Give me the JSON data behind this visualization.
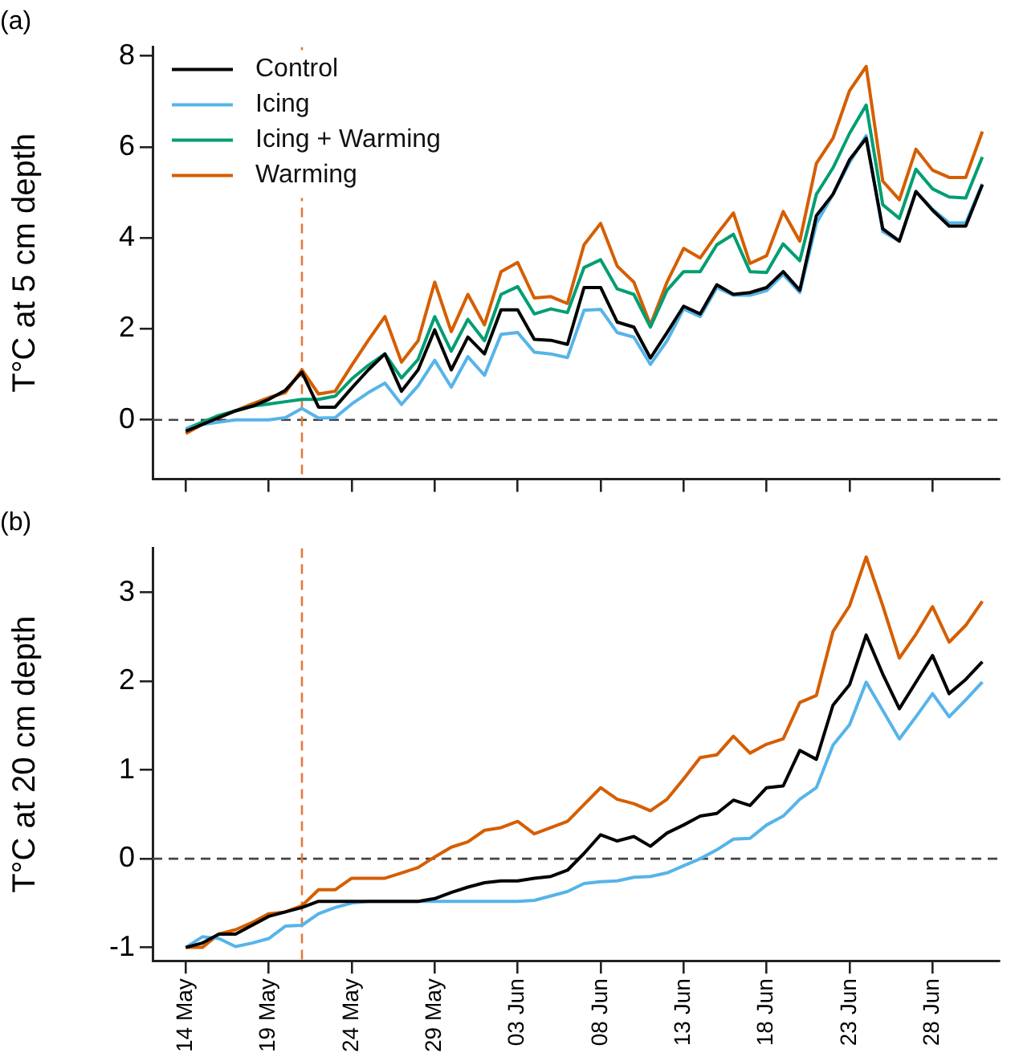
{
  "chart_data": [
    {
      "type": "line",
      "title": "(a)",
      "ylabel": "T°C at 5 cm depth",
      "legend": "top left",
      "tick_labels": "y",
      "x": [
        "--05-14",
        "--05-15",
        "--05-16",
        "--05-17",
        "--05-18",
        "--05-19",
        "--05-20",
        "--05-21",
        "--05-22",
        "--05-23",
        "--05-24",
        "--05-25",
        "--05-26",
        "--05-27",
        "--05-28",
        "--05-29",
        "--05-30",
        "--05-31",
        "--06-01",
        "--06-02",
        "--06-03",
        "--06-04",
        "--06-05",
        "--06-06",
        "--06-07",
        "--06-08",
        "--06-09",
        "--06-10",
        "--06-11",
        "--06-12",
        "--06-13",
        "--06-14",
        "--06-15",
        "--06-16",
        "--06-17",
        "--06-18",
        "--06-19",
        "--06-20",
        "--06-21",
        "--06-22",
        "--06-23",
        "--06-24",
        "--06-25",
        "--06-26",
        "--06-27",
        "--06-28",
        "--06-29",
        "--06-30",
        "--07-01"
      ],
      "series": [
        {
          "name": "Control",
          "color": "#000000",
          "values": [
            -0.25,
            -0.1,
            0.05,
            0.2,
            0.3,
            0.45,
            0.65,
            1.05,
            0.28,
            0.28,
            0.7,
            1.1,
            1.45,
            0.63,
            1.1,
            1.98,
            1.1,
            1.82,
            1.45,
            2.42,
            2.42,
            1.77,
            1.75,
            1.66,
            2.91,
            2.91,
            2.15,
            2.04,
            1.36,
            1.92,
            2.5,
            2.33,
            2.97,
            2.76,
            2.8,
            2.91,
            3.26,
            2.85,
            4.49,
            4.96,
            5.72,
            6.19,
            4.2,
            3.93,
            5.02,
            4.61,
            4.26,
            4.26,
            5.17
          ]
        },
        {
          "name": "Icing",
          "color": "#56b4e9",
          "values": [
            -0.2,
            -0.1,
            -0.05,
            0,
            0,
            0,
            0.05,
            0.25,
            0.04,
            0.05,
            0.35,
            0.6,
            0.81,
            0.34,
            0.75,
            1.31,
            0.72,
            1.39,
            0.98,
            1.88,
            1.92,
            1.49,
            1.45,
            1.37,
            2.41,
            2.43,
            1.92,
            1.82,
            1.22,
            1.74,
            2.44,
            2.27,
            2.91,
            2.74,
            2.74,
            2.84,
            3.2,
            2.8,
            4.32,
            4.96,
            5.66,
            6.25,
            4.14,
            3.93,
            5.02,
            4.63,
            4.33,
            4.33,
            5.19
          ]
        },
        {
          "name": "Icing + Warming",
          "color": "#009e73",
          "values": [
            -0.2,
            -0.05,
            0.1,
            0.2,
            0.3,
            0.35,
            0.4,
            0.45,
            0.45,
            0.52,
            0.9,
            1.2,
            1.45,
            0.92,
            1.33,
            2.27,
            1.51,
            2.21,
            1.74,
            2.76,
            2.93,
            2.33,
            2.44,
            2.36,
            3.35,
            3.52,
            2.88,
            2.76,
            2.04,
            2.85,
            3.26,
            3.26,
            3.85,
            4.08,
            3.26,
            3.24,
            3.87,
            3.5,
            4.96,
            5.54,
            6.3,
            6.92,
            4.73,
            4.43,
            5.51,
            5.08,
            4.9,
            4.88,
            5.78
          ]
        },
        {
          "name": "Warming",
          "color": "#d55e00",
          "values": [
            -0.3,
            -0.1,
            0.05,
            0.2,
            0.35,
            0.49,
            0.6,
            1.1,
            0.57,
            0.63,
            1.2,
            1.75,
            2.27,
            1.27,
            1.74,
            3.03,
            1.94,
            2.76,
            2.09,
            3.26,
            3.46,
            2.68,
            2.71,
            2.56,
            3.85,
            4.32,
            3.38,
            3.03,
            2.09,
            3.03,
            3.77,
            3.56,
            4.08,
            4.55,
            3.44,
            3.61,
            4.58,
            3.93,
            5.64,
            6.19,
            7.24,
            7.77,
            5.25,
            4.84,
            5.95,
            5.49,
            5.33,
            5.33,
            6.34
          ]
        }
      ],
      "xlim": [
        "--05-12",
        "--07-02"
      ],
      "xticks": [
        {
          "value": "--05-14",
          "label": null
        },
        {
          "value": "--05-19",
          "label": null
        },
        {
          "value": "--05-24",
          "label": null
        },
        {
          "value": "--05-29",
          "label": null
        },
        {
          "value": "--06-03",
          "label": null
        },
        {
          "value": "--06-08",
          "label": null
        },
        {
          "value": "--06-13",
          "label": null
        },
        {
          "value": "--06-18",
          "label": null
        },
        {
          "value": "--06-23",
          "label": null
        },
        {
          "value": "--06-28",
          "label": null
        }
      ],
      "ylim": [
        -1.3,
        8.2
      ],
      "yticks": [
        0,
        2,
        4,
        6,
        8
      ],
      "ref_lines": [
        {
          "axis": "y",
          "value": 0,
          "color": "#444444",
          "line_style": "dashed"
        },
        {
          "axis": "x",
          "value": "--05-21",
          "color": "#e07b39",
          "line_style": "dashed"
        }
      ]
    },
    {
      "type": "line",
      "title": "(b)",
      "ylabel": "T°C at 20 cm depth",
      "x": [
        "--05-14",
        "--05-15",
        "--05-16",
        "--05-17",
        "--05-18",
        "--05-19",
        "--05-20",
        "--05-21",
        "--05-22",
        "--05-23",
        "--05-24",
        "--05-25",
        "--05-26",
        "--05-27",
        "--05-28",
        "--05-29",
        "--05-30",
        "--05-31",
        "--06-01",
        "--06-02",
        "--06-03",
        "--06-04",
        "--06-05",
        "--06-06",
        "--06-07",
        "--06-08",
        "--06-09",
        "--06-10",
        "--06-11",
        "--06-12",
        "--06-13",
        "--06-14",
        "--06-15",
        "--06-16",
        "--06-17",
        "--06-18",
        "--06-19",
        "--06-20",
        "--06-21",
        "--06-22",
        "--06-23",
        "--06-24",
        "--06-25",
        "--06-26",
        "--06-27",
        "--06-28",
        "--06-29",
        "--06-30",
        "--07-01"
      ],
      "series": [
        {
          "color": "#000000",
          "values": [
            -1,
            -0.95,
            -0.85,
            -0.85,
            -0.75,
            -0.65,
            -0.6,
            -0.55,
            -0.48,
            -0.48,
            -0.48,
            -0.48,
            -0.48,
            -0.48,
            -0.48,
            -0.45,
            -0.38,
            -0.32,
            -0.27,
            -0.25,
            -0.25,
            -0.22,
            -0.2,
            -0.13,
            0.06,
            0.27,
            0.2,
            0.25,
            0.14,
            0.29,
            0.38,
            0.48,
            0.51,
            0.66,
            0.6,
            0.8,
            0.82,
            1.22,
            1.12,
            1.73,
            1.96,
            2.52,
            2.08,
            1.69,
            1.99,
            2.29,
            1.86,
            2.02,
            2.22
          ]
        },
        {
          "color": "#56b4e9",
          "values": [
            -1,
            -0.88,
            -0.9,
            -0.99,
            -0.95,
            -0.9,
            -0.76,
            -0.75,
            -0.62,
            -0.55,
            -0.5,
            -0.48,
            -0.48,
            -0.48,
            -0.48,
            -0.48,
            -0.48,
            -0.48,
            -0.48,
            -0.48,
            -0.48,
            -0.47,
            -0.42,
            -0.37,
            -0.28,
            -0.26,
            -0.25,
            -0.21,
            -0.2,
            -0.16,
            -0.08,
            0,
            0.1,
            0.22,
            0.23,
            0.38,
            0.48,
            0.67,
            0.8,
            1.28,
            1.51,
            1.99,
            1.67,
            1.35,
            1.6,
            1.86,
            1.6,
            1.79,
            1.99
          ]
        },
        {
          "color": "#d55e00",
          "values": [
            -1,
            -1,
            -0.85,
            -0.8,
            -0.72,
            -0.62,
            -0.6,
            -0.53,
            -0.35,
            -0.35,
            -0.22,
            -0.22,
            -0.22,
            -0.16,
            -0.1,
            0.02,
            0.13,
            0.19,
            0.32,
            0.35,
            0.42,
            0.28,
            0.35,
            0.42,
            0.61,
            0.8,
            0.67,
            0.62,
            0.54,
            0.67,
            0.9,
            1.14,
            1.17,
            1.38,
            1.19,
            1.29,
            1.35,
            1.76,
            1.84,
            2.56,
            2.85,
            3.4,
            2.85,
            2.26,
            2.53,
            2.84,
            2.44,
            2.63,
            2.9
          ]
        }
      ],
      "xlim": [
        "--05-12",
        "--07-02"
      ],
      "xticks": [
        {
          "value": "--05-14",
          "label": "14 May"
        },
        {
          "value": "--05-19",
          "label": "19 May"
        },
        {
          "value": "--05-24",
          "label": "24 May"
        },
        {
          "value": "--05-29",
          "label": "29 May"
        },
        {
          "value": "--06-03",
          "label": "03 Jun"
        },
        {
          "value": "--06-08",
          "label": "08 Jun"
        },
        {
          "value": "--06-13",
          "label": "13 Jun"
        },
        {
          "value": "--06-18",
          "label": "18 Jun"
        },
        {
          "value": "--06-23",
          "label": "23 Jun"
        },
        {
          "value": "--06-28",
          "label": "28 Jun"
        }
      ],
      "ylim": [
        -1.15,
        3.5
      ],
      "yticks": [
        -1,
        0,
        1,
        2,
        3
      ],
      "ref_lines": [
        {
          "axis": "y",
          "value": 0,
          "color": "#444444",
          "line_style": "dashed"
        },
        {
          "axis": "x",
          "value": "--05-21",
          "color": "#e07b39",
          "line_style": "dashed"
        }
      ]
    }
  ]
}
